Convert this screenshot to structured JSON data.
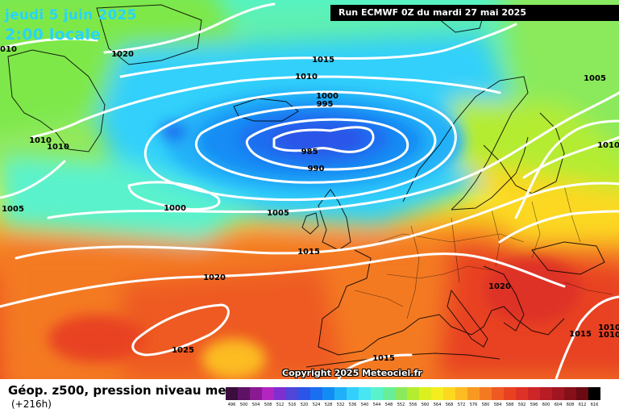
{
  "header": {
    "date": "jeudi 5 juin 2025",
    "local_time": "2:00 locale",
    "run": "Run ECMWF 0Z du mardi 27 mai 2025"
  },
  "map": {
    "watermark": "Copyright 2025 Meteociel.fr",
    "isobar_labels": [
      "1010",
      "1020",
      "1015",
      "1010",
      "1005",
      "1000",
      "995",
      "985",
      "990",
      "1010",
      "1010",
      "1010",
      "1005",
      "1000",
      "1005",
      "1015",
      "1020",
      "1020",
      "1025",
      "1015",
      "1015",
      "1010",
      "1010"
    ]
  },
  "footer": {
    "field": "Géop. z500, pression niveau mer",
    "forecast_hour": "(+216h)"
  },
  "legend": {
    "labels": [
      "496",
      "500",
      "504",
      "508",
      "512",
      "516",
      "520",
      "524",
      "528",
      "532",
      "536",
      "540",
      "544",
      "548",
      "552",
      "556",
      "560",
      "564",
      "568",
      "572",
      "576",
      "580",
      "584",
      "588",
      "592",
      "596",
      "600",
      "604",
      "608",
      "612",
      "616"
    ],
    "colors": [
      "#3a0d3c",
      "#5e1263",
      "#8a1a92",
      "#b225c0",
      "#7f2fd0",
      "#5046d8",
      "#2a55e8",
      "#1a6ef0",
      "#128cf4",
      "#20b0f8",
      "#33d0fb",
      "#48e6f2",
      "#5af2cc",
      "#68ee98",
      "#8aea5c",
      "#b4ec30",
      "#dcf020",
      "#f4ee20",
      "#fcd820",
      "#fcbc22",
      "#f89a22",
      "#f47a22",
      "#ee5a22",
      "#e84222",
      "#de3226",
      "#cc2628",
      "#b81c24",
      "#a01620",
      "#86101a",
      "#6a0a12",
      "#000000"
    ]
  }
}
